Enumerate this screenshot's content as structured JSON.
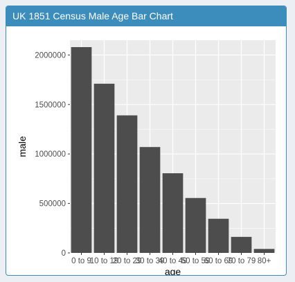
{
  "panel": {
    "title": "UK 1851 Census Male Age Bar Chart"
  },
  "colors": {
    "panel_header": "#3c8dbc",
    "plot_background": "#ebebeb",
    "grid": "#ffffff",
    "bar": "#4d4d4d",
    "tick_text": "#4d4d4d",
    "axis_title": "#000000"
  },
  "chart_data": {
    "type": "bar",
    "xlabel": "age",
    "ylabel": "male",
    "categories": [
      "0 to 9",
      "10 to 19",
      "20 to 29",
      "30 to 39",
      "40 to 49",
      "50 to 59",
      "60 to 69",
      "70 to 79",
      "80+"
    ],
    "values": [
      2080000,
      1710000,
      1390000,
      1070000,
      805000,
      555000,
      345000,
      162000,
      40000
    ],
    "ylim": [
      0,
      2150000
    ],
    "yticks": [
      0,
      500000,
      1000000,
      1500000,
      2000000
    ],
    "ytick_labels": [
      "0",
      "500000",
      "1000000",
      "1500000",
      "2000000"
    ],
    "grid": true,
    "legend": "none"
  }
}
